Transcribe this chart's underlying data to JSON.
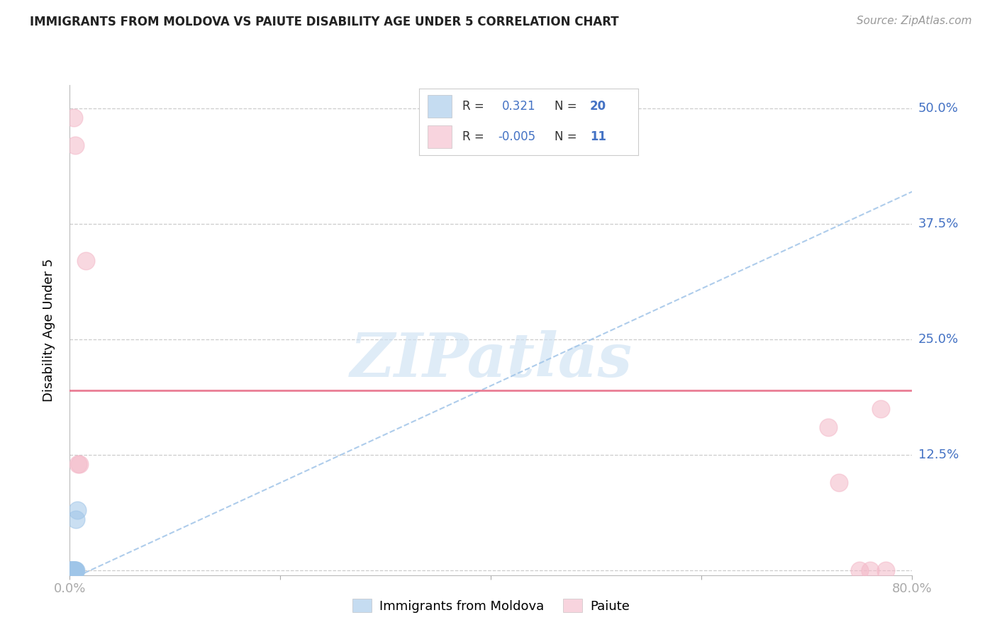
{
  "title": "IMMIGRANTS FROM MOLDOVA VS PAIUTE DISABILITY AGE UNDER 5 CORRELATION CHART",
  "source": "Source: ZipAtlas.com",
  "ylabel": "Disability Age Under 5",
  "xlim": [
    0.0,
    0.8
  ],
  "ylim": [
    -0.005,
    0.525
  ],
  "xtick_positions": [
    0.0,
    0.2,
    0.4,
    0.6,
    0.8
  ],
  "xtick_labels": [
    "0.0%",
    "",
    "",
    "",
    "80.0%"
  ],
  "ytick_positions": [
    0.0,
    0.125,
    0.25,
    0.375,
    0.5
  ],
  "ytick_labels": [
    "",
    "12.5%",
    "25.0%",
    "37.5%",
    "50.0%"
  ],
  "legend_R1": "0.321",
  "legend_N1": "20",
  "legend_R2": "-0.005",
  "legend_N2": "11",
  "legend_label1": "Immigrants from Moldova",
  "legend_label2": "Paiute",
  "blue_color": "#9fc5e8",
  "pink_color": "#f4b8c8",
  "trend_blue_color": "#a0c4e8",
  "trend_pink_color": "#e8708a",
  "grid_color": "#cccccc",
  "axis_label_color": "#4472c4",
  "title_color": "#222222",
  "source_color": "#999999",
  "bg_color": "#ffffff",
  "moldova_x": [
    0.001,
    0.001,
    0.001,
    0.002,
    0.002,
    0.002,
    0.002,
    0.003,
    0.003,
    0.003,
    0.003,
    0.004,
    0.004,
    0.004,
    0.005,
    0.005,
    0.005,
    0.006,
    0.006,
    0.007
  ],
  "moldova_y": [
    0.0,
    0.0,
    0.0,
    0.0,
    0.0,
    0.0,
    0.0,
    0.0,
    0.0,
    0.0,
    0.0,
    0.0,
    0.0,
    0.0,
    0.0,
    0.0,
    0.0,
    0.0,
    0.055,
    0.065
  ],
  "paiute_x": [
    0.004,
    0.005,
    0.008,
    0.009,
    0.015,
    0.72,
    0.73,
    0.75,
    0.76,
    0.77,
    0.775
  ],
  "paiute_y": [
    0.49,
    0.46,
    0.115,
    0.115,
    0.335,
    0.155,
    0.095,
    0.0,
    0.0,
    0.175,
    0.0
  ],
  "blue_trend_x": [
    0.0,
    0.8
  ],
  "blue_trend_y": [
    -0.01,
    0.41
  ],
  "pink_trend_y": 0.195,
  "watermark_text": "ZIPatlas",
  "watermark_color": "#cfe2f3"
}
